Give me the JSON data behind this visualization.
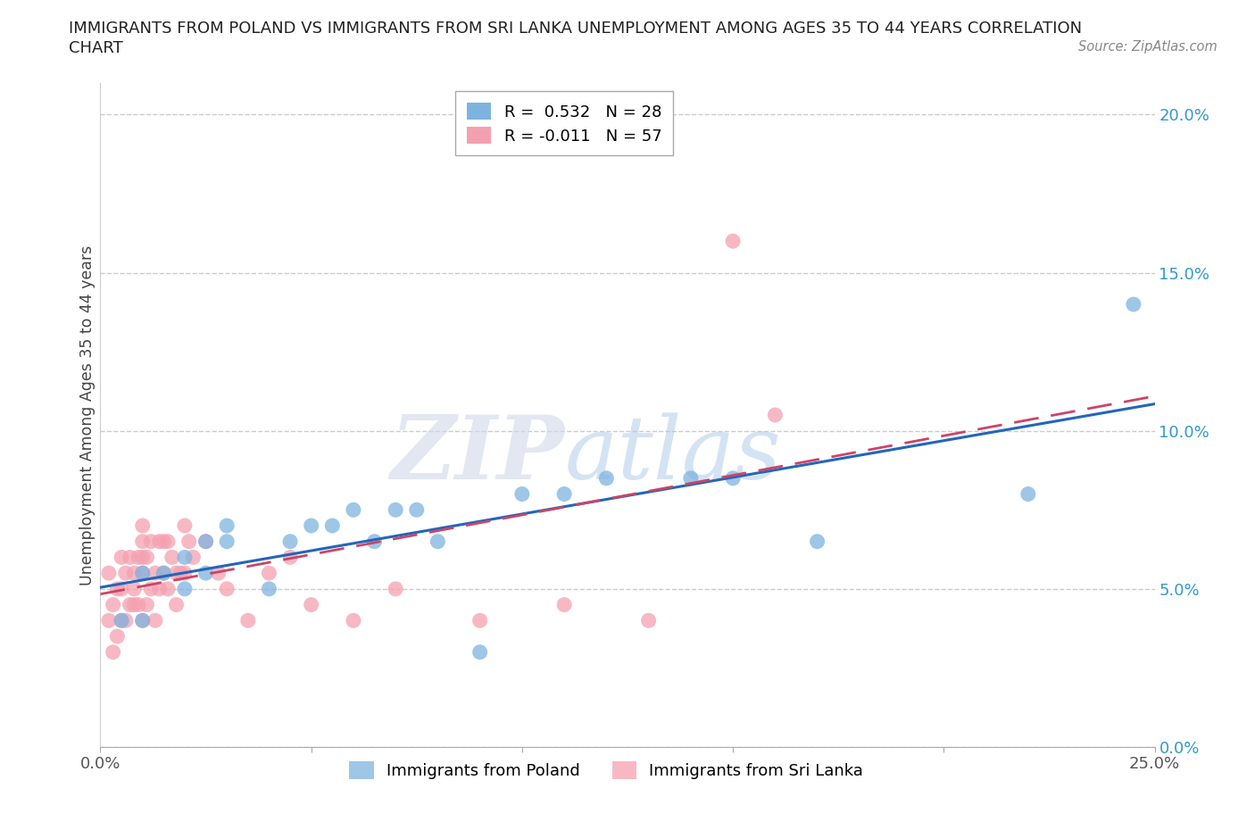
{
  "title_line1": "IMMIGRANTS FROM POLAND VS IMMIGRANTS FROM SRI LANKA UNEMPLOYMENT AMONG AGES 35 TO 44 YEARS CORRELATION",
  "title_line2": "CHART",
  "source": "Source: ZipAtlas.com",
  "ylabel": "Unemployment Among Ages 35 to 44 years",
  "xlim": [
    0.0,
    0.25
  ],
  "ylim": [
    0.0,
    0.21
  ],
  "yticks": [
    0.0,
    0.05,
    0.1,
    0.15,
    0.2
  ],
  "ytick_labels": [
    "0.0%",
    "5.0%",
    "10.0%",
    "15.0%",
    "20.0%"
  ],
  "xticks": [
    0.0,
    0.05,
    0.1,
    0.15,
    0.2,
    0.25
  ],
  "xtick_labels": [
    "0.0%",
    "",
    "",
    "",
    "",
    "25.0%"
  ],
  "poland_color": "#7eb3e0",
  "poland_line_color": "#2266bb",
  "srilanka_color": "#f5a0b0",
  "srilanka_line_color": "#cc4466",
  "poland_R": 0.532,
  "poland_N": 28,
  "srilanka_R": -0.011,
  "srilanka_N": 57,
  "poland_scatter_x": [
    0.005,
    0.01,
    0.01,
    0.015,
    0.02,
    0.02,
    0.025,
    0.025,
    0.03,
    0.03,
    0.04,
    0.045,
    0.05,
    0.055,
    0.06,
    0.065,
    0.07,
    0.075,
    0.08,
    0.09,
    0.1,
    0.11,
    0.12,
    0.14,
    0.15,
    0.17,
    0.22,
    0.245
  ],
  "poland_scatter_y": [
    0.04,
    0.055,
    0.04,
    0.055,
    0.06,
    0.05,
    0.065,
    0.055,
    0.07,
    0.065,
    0.05,
    0.065,
    0.07,
    0.07,
    0.075,
    0.065,
    0.075,
    0.075,
    0.065,
    0.03,
    0.08,
    0.08,
    0.085,
    0.085,
    0.085,
    0.065,
    0.08,
    0.14
  ],
  "srilanka_scatter_x": [
    0.002,
    0.002,
    0.003,
    0.003,
    0.004,
    0.004,
    0.005,
    0.005,
    0.005,
    0.006,
    0.006,
    0.007,
    0.007,
    0.008,
    0.008,
    0.008,
    0.009,
    0.009,
    0.01,
    0.01,
    0.01,
    0.01,
    0.01,
    0.011,
    0.011,
    0.012,
    0.012,
    0.013,
    0.013,
    0.014,
    0.014,
    0.015,
    0.015,
    0.016,
    0.016,
    0.017,
    0.018,
    0.018,
    0.019,
    0.02,
    0.02,
    0.021,
    0.022,
    0.025,
    0.028,
    0.03,
    0.035,
    0.04,
    0.045,
    0.05,
    0.06,
    0.07,
    0.09,
    0.11,
    0.13,
    0.15,
    0.16
  ],
  "srilanka_scatter_y": [
    0.055,
    0.04,
    0.045,
    0.03,
    0.05,
    0.035,
    0.06,
    0.05,
    0.04,
    0.055,
    0.04,
    0.06,
    0.045,
    0.055,
    0.05,
    0.045,
    0.06,
    0.045,
    0.07,
    0.065,
    0.06,
    0.055,
    0.04,
    0.06,
    0.045,
    0.065,
    0.05,
    0.055,
    0.04,
    0.065,
    0.05,
    0.065,
    0.055,
    0.065,
    0.05,
    0.06,
    0.055,
    0.045,
    0.055,
    0.07,
    0.055,
    0.065,
    0.06,
    0.065,
    0.055,
    0.05,
    0.04,
    0.055,
    0.06,
    0.045,
    0.04,
    0.05,
    0.04,
    0.045,
    0.04,
    0.16,
    0.105
  ],
  "watermark_zip": "ZIP",
  "watermark_atlas": "atlas",
  "background_color": "#ffffff",
  "grid_color": "#cccccc"
}
